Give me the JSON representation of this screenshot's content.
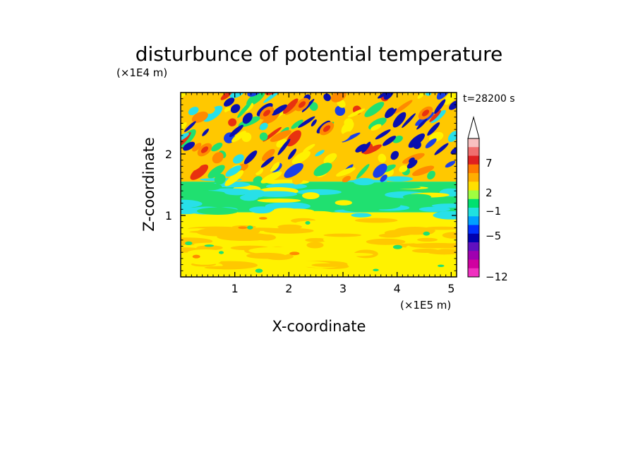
{
  "chart_data": {
    "type": "heatmap",
    "title": "disturbunce of potential temperature",
    "xlabel": "X-coordinate",
    "ylabel": "Z-coordinate",
    "x_unit": "(×1E5 m)",
    "y_unit": "(×1E4 m)",
    "time_label": "t=28200 s",
    "xlim": [
      0,
      5.1
    ],
    "ylim": [
      0,
      3.0
    ],
    "x_ticks": [
      "1",
      "2",
      "3",
      "4",
      "5"
    ],
    "y_ticks": [
      "1",
      "2"
    ],
    "colorbar": {
      "labels": [
        "7",
        "2",
        "−1",
        "−5",
        "−12"
      ],
      "colors": [
        "#f8c0c0",
        "#f06e6e",
        "#e02020",
        "#ff7a00",
        "#ffae00",
        "#ffe000",
        "#a0ff40",
        "#00e070",
        "#20e0e0",
        "#00a0ff",
        "#0030ff",
        "#0000b0",
        "#6010c0",
        "#a000b0",
        "#d000a0",
        "#f030c0"
      ]
    },
    "palette": {
      "deep_blue": "#0a10b0",
      "blue": "#1a40e8",
      "cyan": "#28e0e8",
      "green": "#20e070",
      "yellow": "#fff200",
      "gold": "#ffc800",
      "orange": "#ff8a00",
      "red": "#e8320f"
    }
  }
}
